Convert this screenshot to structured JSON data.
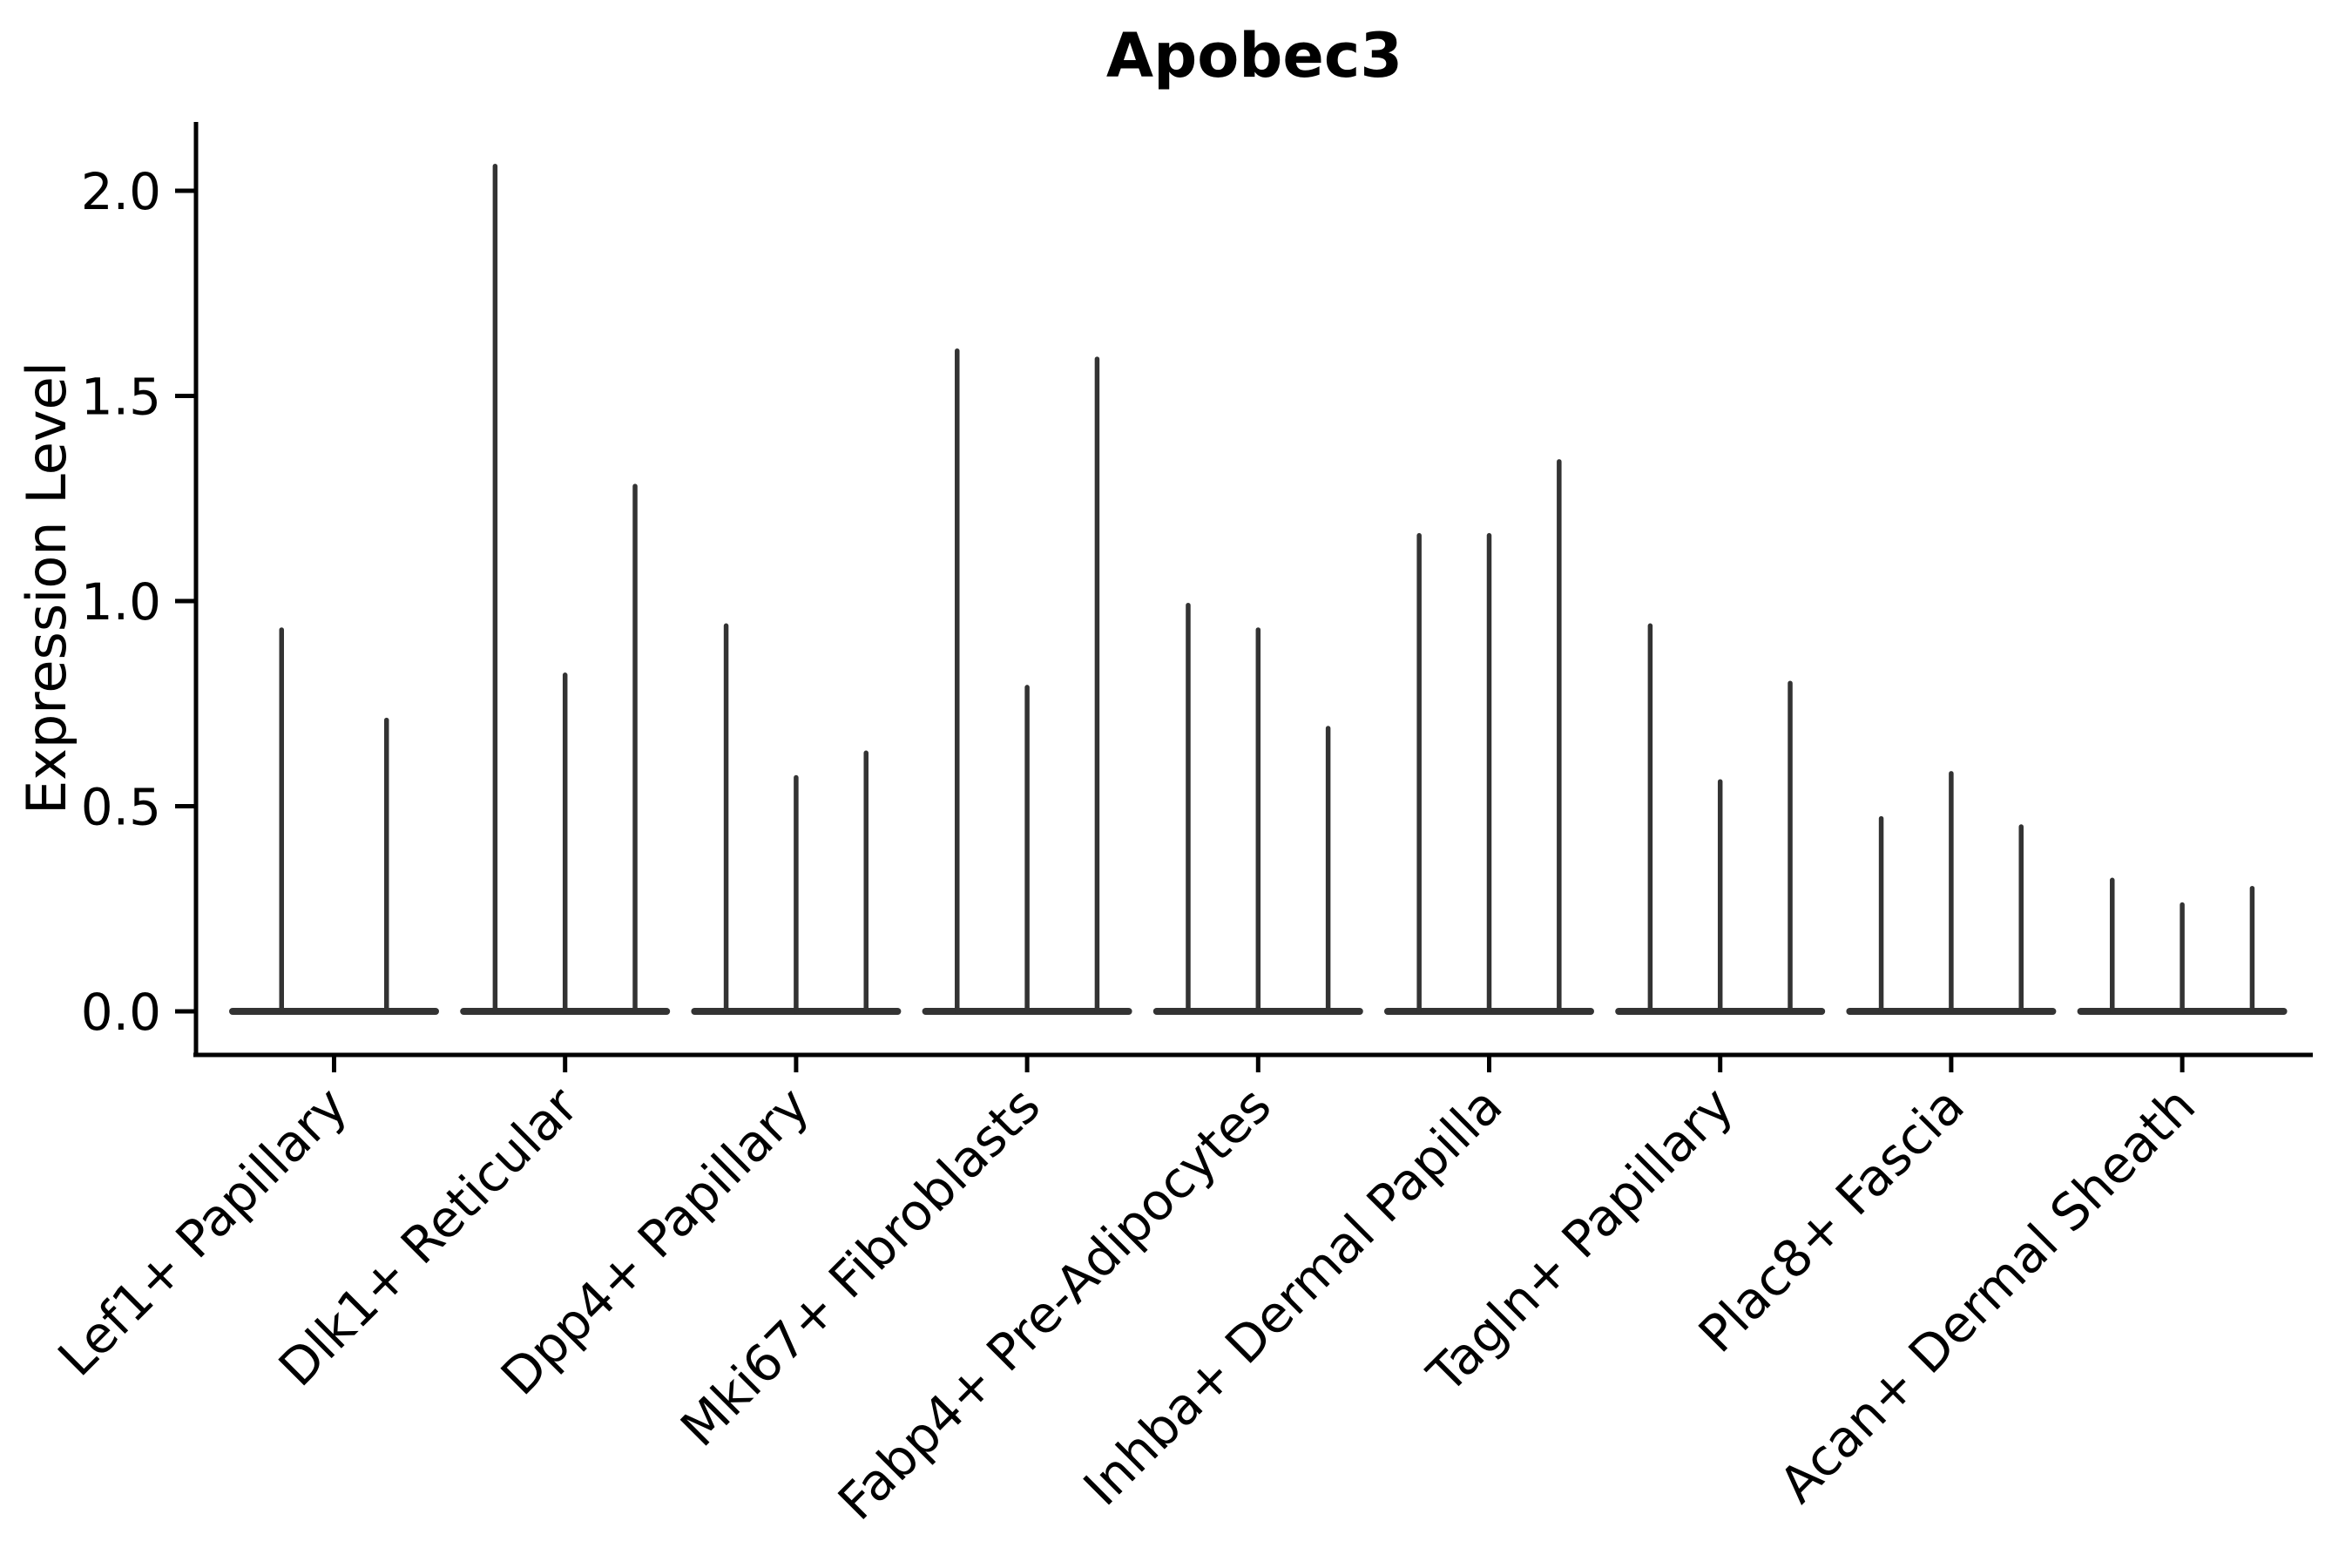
{
  "figure": {
    "background": "#ffffff"
  },
  "chart_data": {
    "type": "violin",
    "title": "Apobec3",
    "ylabel": "Expression Level",
    "xlabel": "",
    "grid": false,
    "legend": null,
    "ylim": [
      0,
      2.17
    ],
    "yticks": [
      0.0,
      0.5,
      1.0,
      1.5,
      2.0
    ],
    "ytick_labels": [
      "0.0",
      "0.5",
      "1.0",
      "1.5",
      "2.0"
    ],
    "categories": [
      "Lef1+ Papillary",
      "Dlk1+ Reticular",
      "Dpp4+ Papillary",
      "Mki67+ Fibroblasts",
      "Fabp4+ Pre-Adipocytes",
      "Inhba+ Dermal Papilla",
      "Tagln+ Papillary",
      "Plac8+ Fascia",
      "Acan+ Dermal Sheath"
    ],
    "groups": [
      {
        "category": "Lef1+ Papillary",
        "violin_max_values": [
          0.93,
          0.71
        ]
      },
      {
        "category": "Dlk1+ Reticular",
        "violin_max_values": [
          2.06,
          0.82,
          1.28
        ]
      },
      {
        "category": "Dpp4+ Papillary",
        "violin_max_values": [
          0.94,
          0.57,
          0.63
        ]
      },
      {
        "category": "Mki67+ Fibroblasts",
        "violin_max_values": [
          1.61,
          0.79,
          1.59
        ]
      },
      {
        "category": "Fabp4+ Pre-Adipocytes",
        "violin_max_values": [
          0.99,
          0.93,
          0.69
        ]
      },
      {
        "category": "Inhba+ Dermal Papilla",
        "violin_max_values": [
          1.16,
          1.16,
          1.34
        ]
      },
      {
        "category": "Tagln+ Papillary",
        "violin_max_values": [
          0.94,
          0.56,
          0.8
        ]
      },
      {
        "category": "Plac8+ Fascia",
        "violin_max_values": [
          0.47,
          0.58,
          0.45
        ]
      },
      {
        "category": "Acan+ Dermal Sheath",
        "violin_max_values": [
          0.32,
          0.26,
          0.3
        ]
      }
    ],
    "colors": {
      "violin": "#333333",
      "axis": "#000000",
      "text": "#000000"
    }
  }
}
